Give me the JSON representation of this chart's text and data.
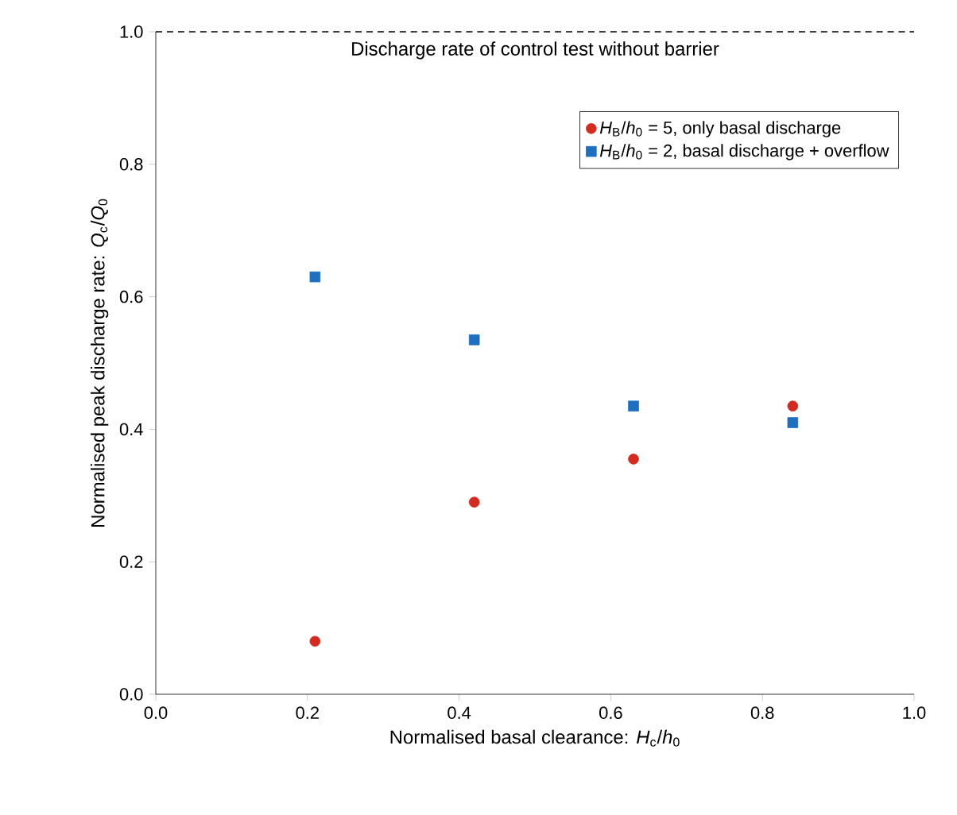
{
  "chart_data": {
    "type": "scatter",
    "xlabel": "Normalised basal clearance: *H*$_{c}$/*h*$_{0}$",
    "ylabel": "Normalised peak discharge rate: *Q*$_{c}$/*Q*$_{0}$",
    "xlim": [
      0,
      1
    ],
    "ylim": [
      0,
      1
    ],
    "xticks": [
      {
        "value": 0,
        "label": "0.0"
      },
      {
        "value": 0.2,
        "label": "0.2"
      },
      {
        "value": 0.4,
        "label": "0.4"
      },
      {
        "value": 0.6,
        "label": "0.6"
      },
      {
        "value": 0.8,
        "label": "0.8"
      },
      {
        "value": 1,
        "label": "1.0"
      }
    ],
    "yticks": [
      {
        "value": 0,
        "label": "0.0"
      },
      {
        "value": 0.2,
        "label": "0.2"
      },
      {
        "value": 0.4,
        "label": "0.4"
      },
      {
        "value": 0.6,
        "label": "0.6"
      },
      {
        "value": 0.8,
        "label": "0.8"
      },
      {
        "value": 1,
        "label": "1.0"
      }
    ],
    "x": [
      0.21,
      0.42,
      0.63,
      0.84
    ],
    "series": [
      {
        "name": "*H*$_{B}$/*h*$_{0}$ = 5, only basal discharge",
        "color": "#d42a20",
        "marker": "circle",
        "values": [
          0.08,
          0.29,
          0.355,
          0.435
        ]
      },
      {
        "name": "*H*$_{B}$/*h*$_{0}$ = 2, basal discharge + overflow",
        "color": "#1f6fc0",
        "marker": "square",
        "values": [
          0.63,
          0.535,
          0.435,
          0.41
        ]
      }
    ],
    "ref_lines": [
      {
        "axis": "y",
        "value": 1.0,
        "label": "Discharge rate of control test without barrier",
        "color": "#000000",
        "line_style": "dashed"
      }
    ],
    "legend": "top right",
    "grid": false
  }
}
